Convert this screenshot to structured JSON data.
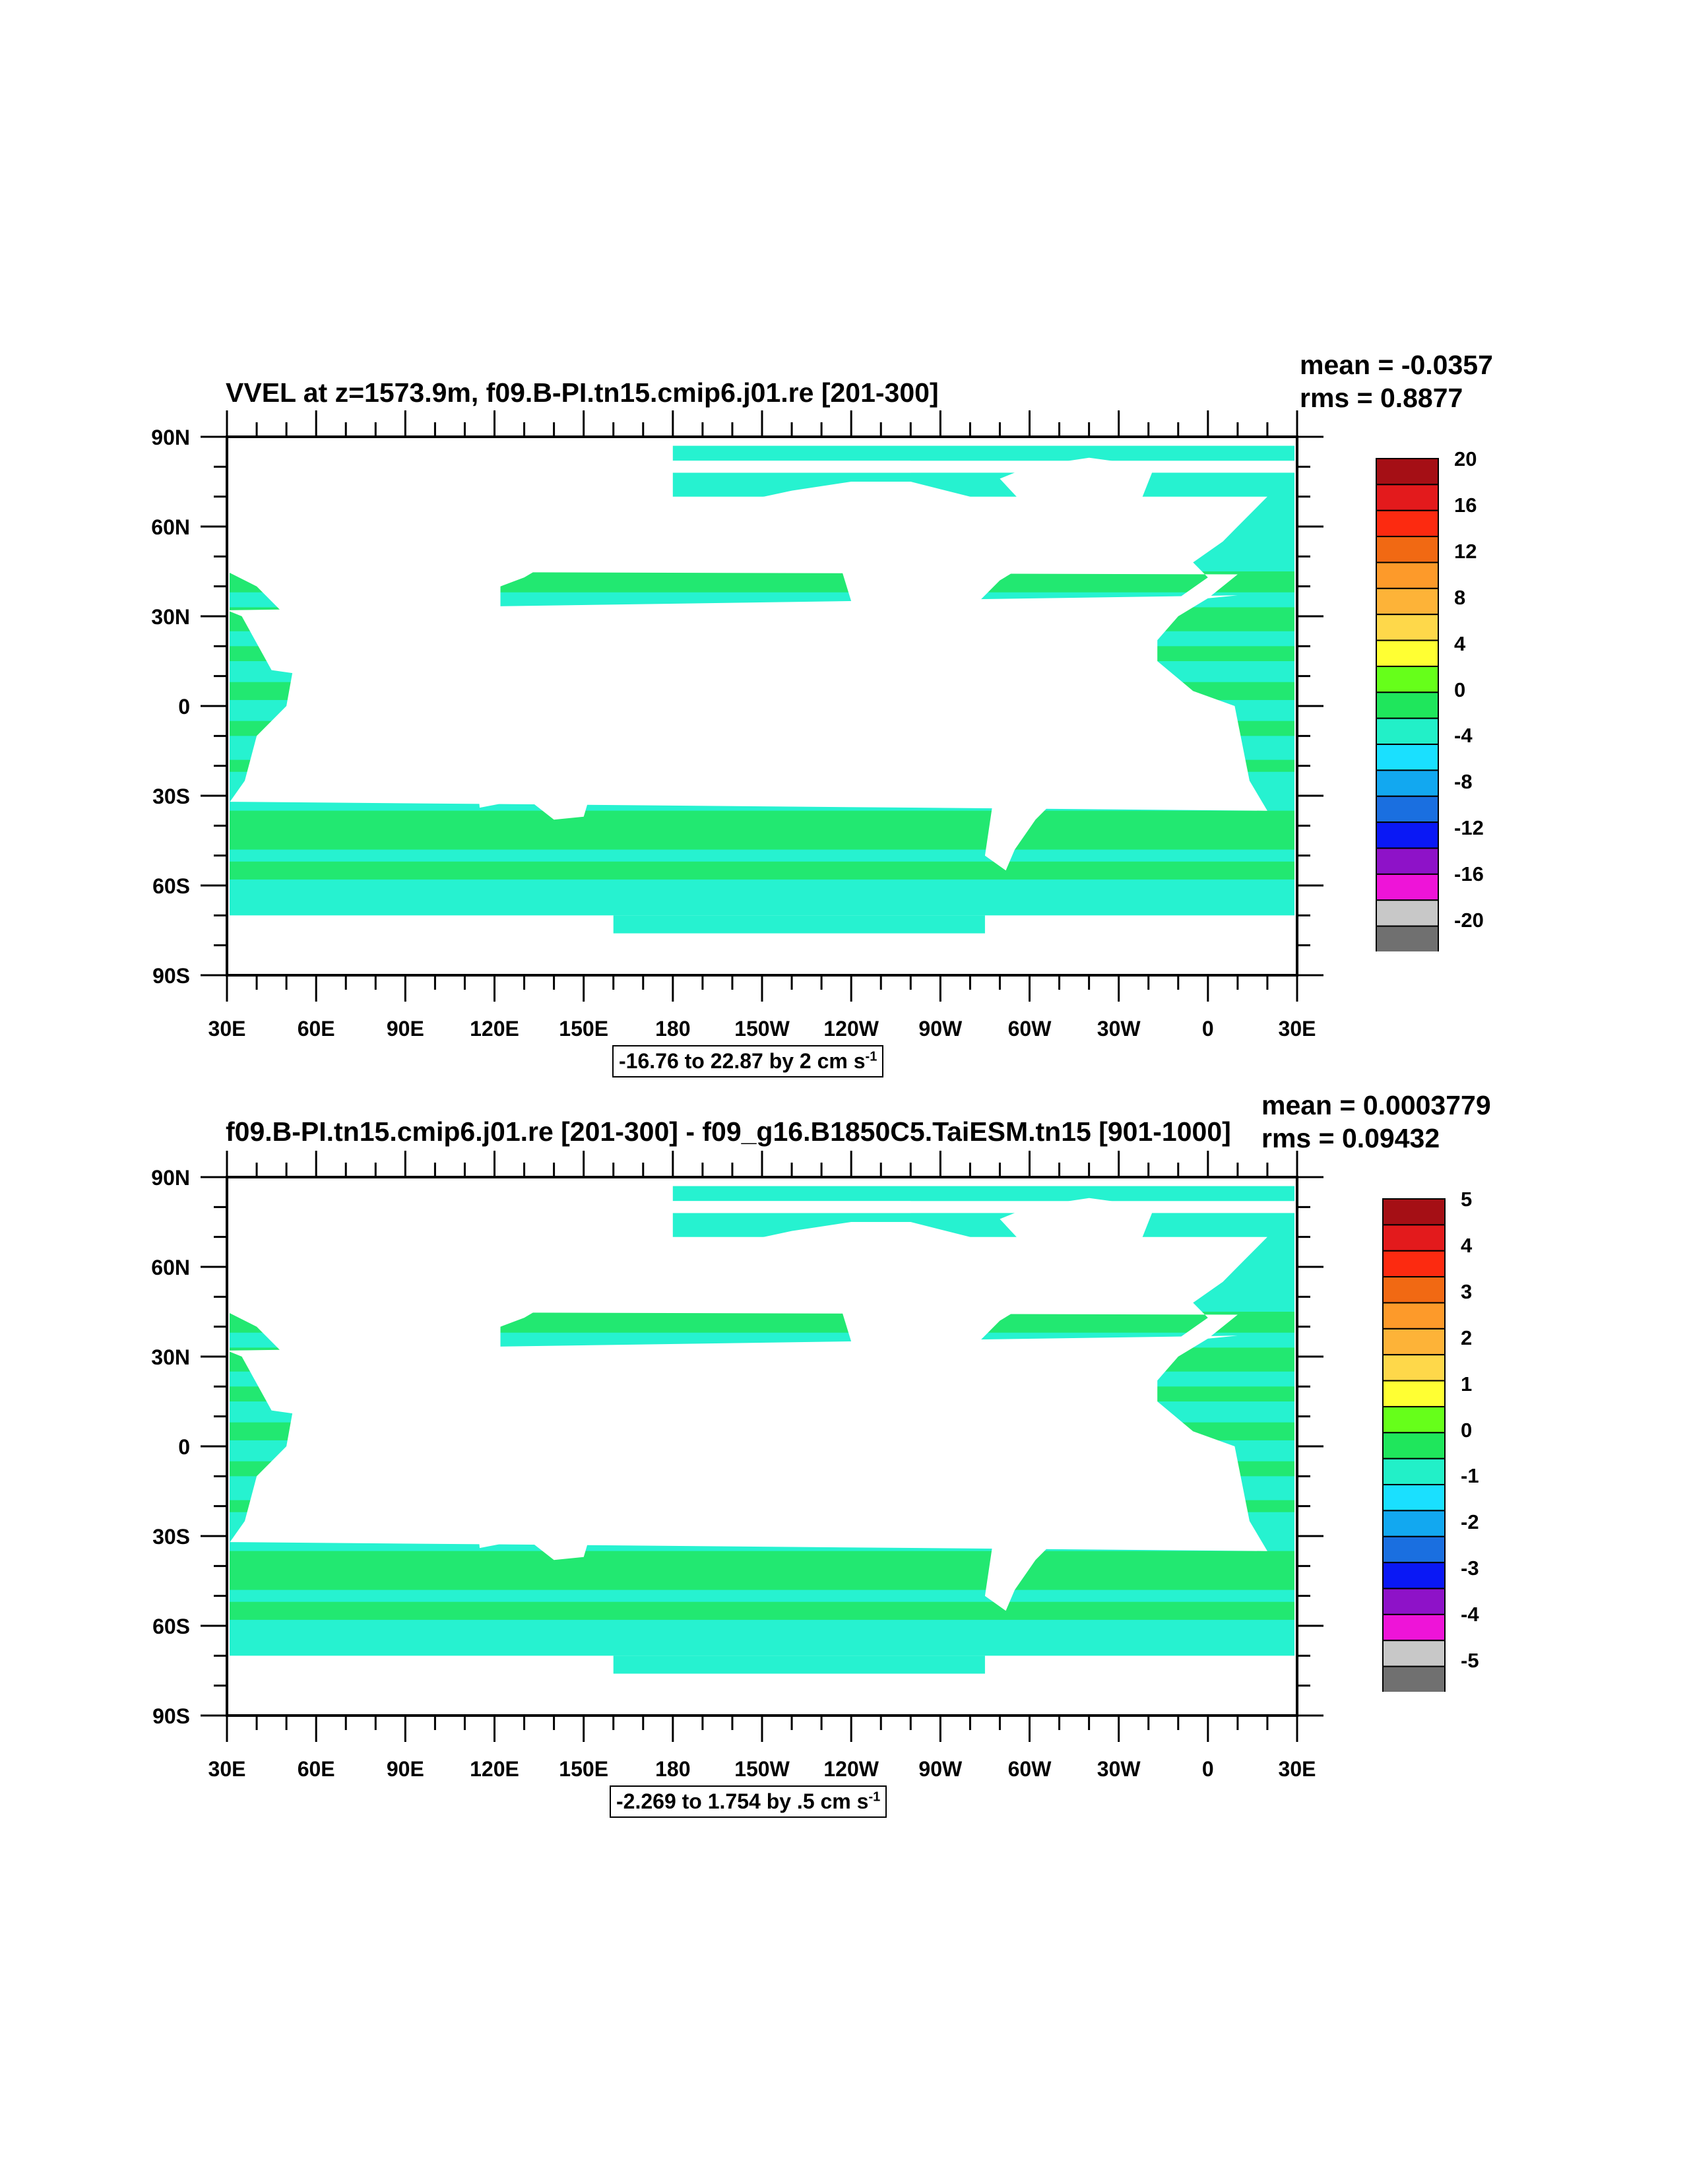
{
  "panels": [
    {
      "id": "top",
      "title": "VVEL at z=1573.9m, f09.B-PI.tn15.cmip6.j01.re [201-300]",
      "mean": "mean = -0.0357",
      "rms": "rms = 0.8877",
      "info_main": "-16.76 to 22.87 by 2 cm s",
      "info_sup": "-1",
      "colorbar_labels": [
        "20",
        "16",
        "12",
        "8",
        "4",
        "0",
        "-4",
        "-8",
        "-12",
        "-16",
        "-20"
      ]
    },
    {
      "id": "bottom",
      "title": "f09.B-PI.tn15.cmip6.j01.re [201-300] - f09_g16.B1850C5.TaiESM.tn15 [901-1000]",
      "mean": "mean = 0.0003779",
      "rms": "rms = 0.09432",
      "info_main": "-2.269 to 1.754 by .5 cm s",
      "info_sup": "-1",
      "colorbar_labels": [
        "5",
        "4",
        "3",
        "2",
        "1",
        "0",
        "-1",
        "-2",
        "-3",
        "-4",
        "-5"
      ]
    }
  ],
  "lat_labels": [
    "90N",
    "60N",
    "30N",
    "0",
    "30S",
    "60S",
    "90S"
  ],
  "lon_labels": [
    "30E",
    "60E",
    "90E",
    "120E",
    "150E",
    "180",
    "150W",
    "120W",
    "90W",
    "60W",
    "30W",
    "0",
    "30E"
  ],
  "colorbar_colors": [
    "#a50f15",
    "#e31a1c",
    "#fc2a10",
    "#f16913",
    "#fd9a2a",
    "#fdb338",
    "#fed84a",
    "#ffff33",
    "#66ff1a",
    "#1fe65c",
    "#22f0c8",
    "#1ae0ff",
    "#12a8f0",
    "#1a6fe0",
    "#0a18f5",
    "#8e12c8",
    "#ee14d8",
    "#c8c8c8",
    "#707070"
  ],
  "ocean_colors": {
    "cyan": "#26f2d0",
    "green": "#22e660"
  }
}
